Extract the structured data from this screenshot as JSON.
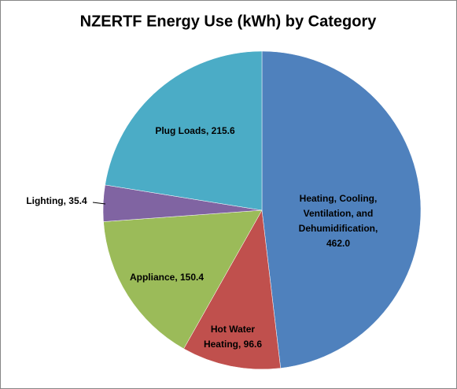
{
  "chart_data": {
    "type": "pie",
    "title": "NZERTF Energy Use (kWh) by Category",
    "categories": [
      "Heating, Cooling, Ventilation, and Dehumidification",
      "Hot Water Heating",
      "Appliance",
      "Lighting",
      "Plug Loads"
    ],
    "values": [
      462.0,
      96.6,
      150.4,
      35.4,
      215.6
    ],
    "value_labels": [
      ", 462.0",
      ", 96.6",
      ", 150.4",
      ", 35.4",
      ", 215.6"
    ],
    "colors": [
      "#4f81bd",
      "#c0504d",
      "#9bbb59",
      "#8064a2",
      "#4bacc6"
    ]
  }
}
